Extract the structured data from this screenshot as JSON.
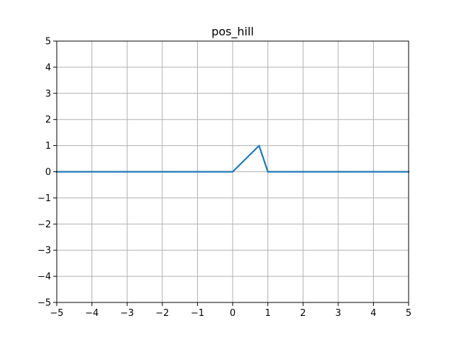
{
  "chart_data": {
    "type": "line",
    "title": "pos_hill",
    "xlabel": "",
    "ylabel": "",
    "xlim": [
      -5,
      5
    ],
    "ylim": [
      -5,
      5
    ],
    "xticks": [
      -5,
      -4,
      -3,
      -2,
      -1,
      0,
      1,
      2,
      3,
      4,
      5
    ],
    "yticks": [
      -5,
      -4,
      -3,
      -2,
      -1,
      0,
      1,
      2,
      3,
      4,
      5
    ],
    "grid": true,
    "series": [
      {
        "color": "#1f77b4",
        "x": [
          -5,
          0,
          0.75,
          1,
          5
        ],
        "y": [
          0,
          0,
          1,
          0,
          0
        ]
      }
    ]
  }
}
